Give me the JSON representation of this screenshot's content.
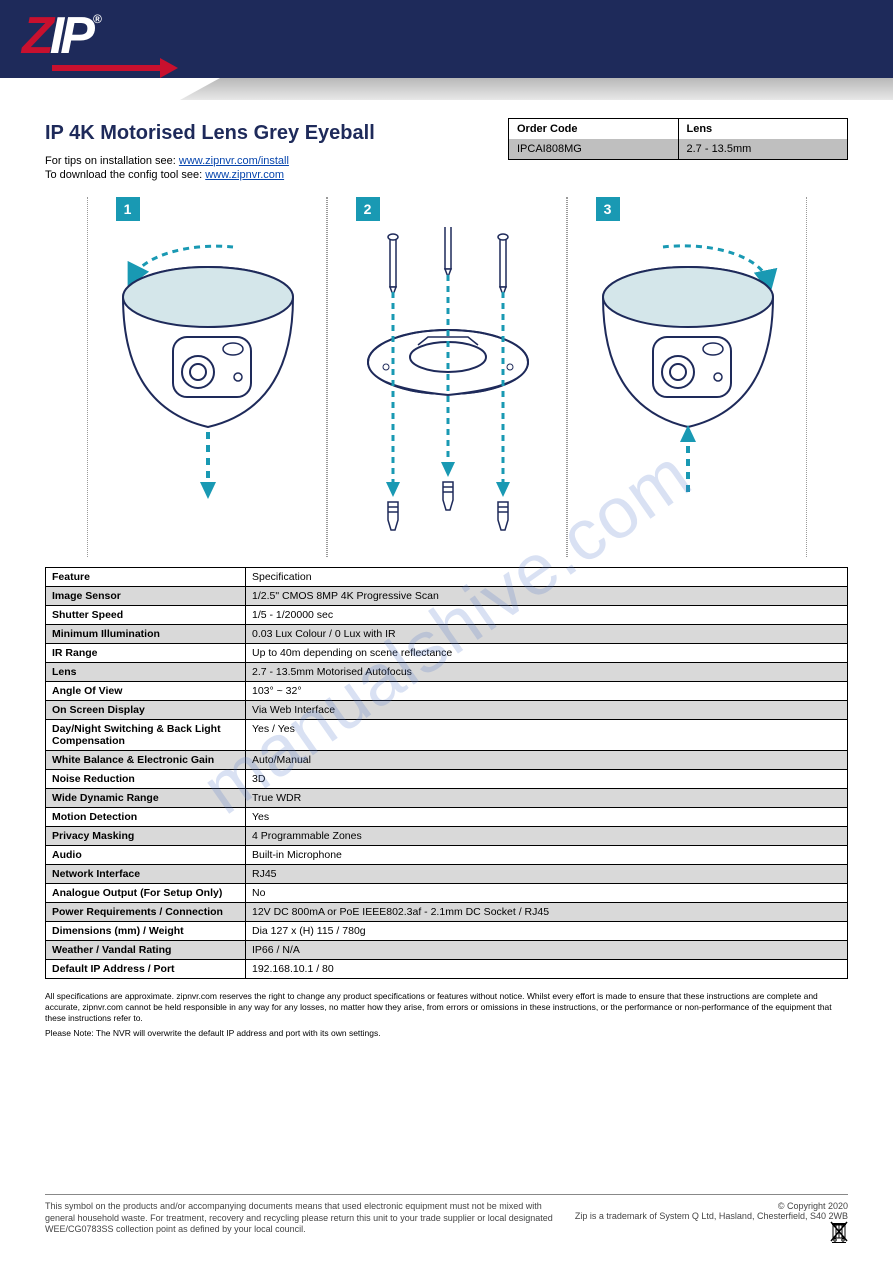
{
  "header": {
    "logo_z": "Z",
    "logo_ip": "IP",
    "logo_r": "®"
  },
  "title": "IP 4K Motorised Lens Grey Eyeball",
  "links": {
    "tips_label": "For tips on installation see: ",
    "tips_url": "www.zipnvr.com/install",
    "download_label": "To download the config tool see: ",
    "download_url": "www.zipnvr.com"
  },
  "order_box": {
    "col1_head": "Order Code",
    "col2_head": "Lens",
    "col1_val": "IPCAI808MG",
    "col2_val": "2.7 - 13.5mm"
  },
  "steps": {
    "s1": "1",
    "s2": "2",
    "s3": "3"
  },
  "spec_rows": [
    [
      "Feature",
      "Specification"
    ],
    [
      "Image Sensor",
      "1/2.5\" CMOS 8MP 4K Progressive Scan"
    ],
    [
      "Shutter Speed",
      "1/5 - 1/20000 sec"
    ],
    [
      "Minimum Illumination",
      "0.03 Lux Colour / 0 Lux with IR"
    ],
    [
      "IR Range",
      "Up to 40m depending on scene reflectance"
    ],
    [
      "Lens",
      "2.7 - 13.5mm Motorised Autofocus"
    ],
    [
      "Angle Of View",
      "103° ~ 32°"
    ],
    [
      "On Screen Display",
      "Via Web Interface"
    ],
    [
      "Day/Night Switching & Back Light Compensation",
      "Yes / Yes"
    ],
    [
      "White Balance & Electronic Gain",
      "Auto/Manual"
    ],
    [
      "Noise Reduction",
      "3D"
    ],
    [
      "Wide Dynamic Range",
      "True WDR"
    ],
    [
      "Motion Detection",
      "Yes"
    ],
    [
      "Privacy Masking",
      "4 Programmable Zones"
    ],
    [
      "Audio",
      "Built-in Microphone"
    ],
    [
      "Network Interface",
      "RJ45"
    ],
    [
      "Analogue Output (For Setup Only)",
      "No"
    ],
    [
      "Power Requirements / Connection",
      "12V DC 800mA or PoE IEEE802.3af - 2.1mm DC Socket / RJ45"
    ],
    [
      "Dimensions (mm) / Weight",
      "Dia 127 x (H) 115 / 780g"
    ],
    [
      "Weather / Vandal Rating",
      "IP66 / N/A"
    ],
    [
      "Default IP Address / Port",
      "192.168.10.1 / 80"
    ]
  ],
  "shaded_rows": [
    1,
    3,
    5,
    7,
    9,
    11,
    13,
    15,
    17,
    19
  ],
  "footnotes": [
    "All specifications are approximate. zipnvr.com reserves the right to change any product specifications or features without notice. Whilst every effort is made to ensure that these instructions are complete and accurate, zipnvr.com cannot be held responsible in any way for any losses, no matter how they arise, from errors or omissions in these instructions, or the performance or non-performance of the equipment that these instructions refer to.",
    "Please Note: The NVR will overwrite the default IP address and port with its own settings."
  ],
  "footer": {
    "disclaimer": "This symbol on the products and/or accompanying documents means that used electronic equipment must not be mixed with general household waste. For treatment, recovery and recycling please return this unit to your trade supplier or local designated WEE/CG0783SS collection point as defined by your local council.",
    "copyright": "© Copyright 2020",
    "zip_line": "Zip is a trademark of System Q Ltd, Hasland, Chesterfield, S40 2WB",
    "doc_ref": "WEE/CG0783SS"
  },
  "watermark": "manualshive.com",
  "colors": {
    "brand_blue": "#1e2a5a",
    "brand_red": "#c8102e",
    "teal": "#1999b3",
    "shade": "#d9d9d9"
  }
}
